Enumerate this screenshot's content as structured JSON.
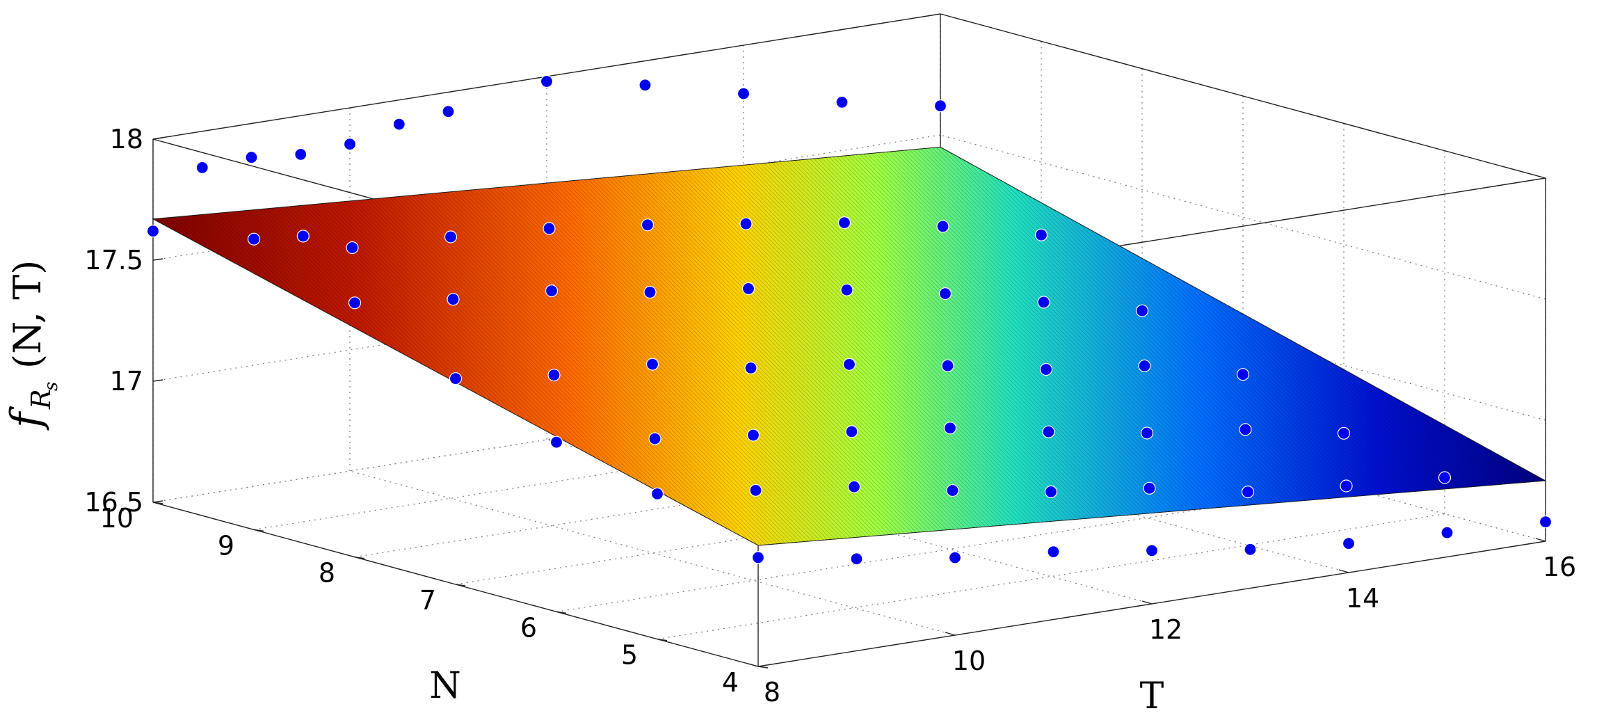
{
  "chart_data": {
    "type": "scatter",
    "subtype": "3d-scatter-with-fitted-surface",
    "title": "",
    "axes": {
      "x": {
        "label": "T",
        "lim": [
          8,
          16
        ],
        "ticks": [
          "8",
          "10",
          "12",
          "14",
          "16"
        ]
      },
      "y": {
        "label": "N",
        "lim": [
          4,
          10
        ],
        "ticks": [
          "4",
          "5",
          "6",
          "7",
          "8",
          "9",
          "10"
        ]
      },
      "z": {
        "label_main": "f",
        "label_sub": "R",
        "label_subsub": "s",
        "label_args": "(N, T)",
        "lim": [
          16.5,
          18
        ],
        "ticks": [
          "16.5",
          "17",
          "17.5",
          "18"
        ]
      }
    },
    "grid": true,
    "box": true,
    "surface": {
      "colormap": "jet",
      "note": "plane fitted to the points",
      "corners": [
        {
          "T": 8,
          "N": 10,
          "f": 17.67
        },
        {
          "T": 16,
          "N": 10,
          "f": 17.45
        },
        {
          "T": 16,
          "N": 4,
          "f": 16.75
        },
        {
          "T": 8,
          "N": 4,
          "f": 17.0
        }
      ]
    },
    "series": [
      {
        "marker_color": "#0000ee",
        "points": [
          [
            8,
            10,
            17.62
          ],
          [
            8.5,
            10,
            17.85
          ],
          [
            9,
            10,
            17.86
          ],
          [
            9.5,
            10,
            17.84
          ],
          [
            10,
            10,
            17.85
          ],
          [
            10.5,
            10,
            17.9
          ],
          [
            11,
            10,
            17.92
          ],
          [
            12,
            10,
            17.98
          ],
          [
            13,
            10,
            17.9
          ],
          [
            14,
            10,
            17.8
          ],
          [
            15,
            10,
            17.7
          ],
          [
            16,
            10,
            17.62
          ],
          [
            8,
            9,
            17.7
          ],
          [
            8.5,
            9,
            17.68
          ],
          [
            9,
            9,
            17.6
          ],
          [
            10,
            9,
            17.58
          ],
          [
            11,
            9,
            17.55
          ],
          [
            12,
            9,
            17.5
          ],
          [
            13,
            9,
            17.44
          ],
          [
            14,
            9,
            17.38
          ],
          [
            15,
            9,
            17.3
          ],
          [
            16,
            9,
            17.2
          ],
          [
            8,
            8,
            17.55
          ],
          [
            9,
            8,
            17.5
          ],
          [
            10,
            8,
            17.47
          ],
          [
            11,
            8,
            17.4
          ],
          [
            12,
            8,
            17.35
          ],
          [
            13,
            8,
            17.28
          ],
          [
            14,
            8,
            17.2
          ],
          [
            15,
            8,
            17.1
          ],
          [
            16,
            8,
            17.0
          ],
          [
            8,
            7,
            17.35
          ],
          [
            9,
            7,
            17.3
          ],
          [
            10,
            7,
            17.28
          ],
          [
            11,
            7,
            17.2
          ],
          [
            12,
            7,
            17.15
          ],
          [
            13,
            7,
            17.08
          ],
          [
            14,
            7,
            17.0
          ],
          [
            15,
            7,
            16.95
          ],
          [
            16,
            7,
            16.85
          ],
          [
            8,
            6,
            17.2
          ],
          [
            9,
            6,
            17.15
          ],
          [
            10,
            6,
            17.1
          ],
          [
            11,
            6,
            17.05
          ],
          [
            12,
            6,
            17.0
          ],
          [
            13,
            6,
            16.92
          ],
          [
            14,
            6,
            16.85
          ],
          [
            15,
            6,
            16.8
          ],
          [
            16,
            6,
            16.72
          ],
          [
            8,
            5,
            17.1
          ],
          [
            9,
            5,
            17.05
          ],
          [
            10,
            5,
            17.0
          ],
          [
            11,
            5,
            16.92
          ],
          [
            12,
            5,
            16.85
          ],
          [
            13,
            5,
            16.8
          ],
          [
            14,
            5,
            16.72
          ],
          [
            15,
            5,
            16.68
          ],
          [
            16,
            5,
            16.65
          ],
          [
            8,
            4,
            16.95
          ],
          [
            9,
            4,
            16.88
          ],
          [
            10,
            4,
            16.82
          ],
          [
            11,
            4,
            16.78
          ],
          [
            12,
            4,
            16.72
          ],
          [
            13,
            4,
            16.66
          ],
          [
            14,
            4,
            16.62
          ],
          [
            15,
            4,
            16.6
          ],
          [
            16,
            4,
            16.58
          ]
        ]
      }
    ]
  }
}
